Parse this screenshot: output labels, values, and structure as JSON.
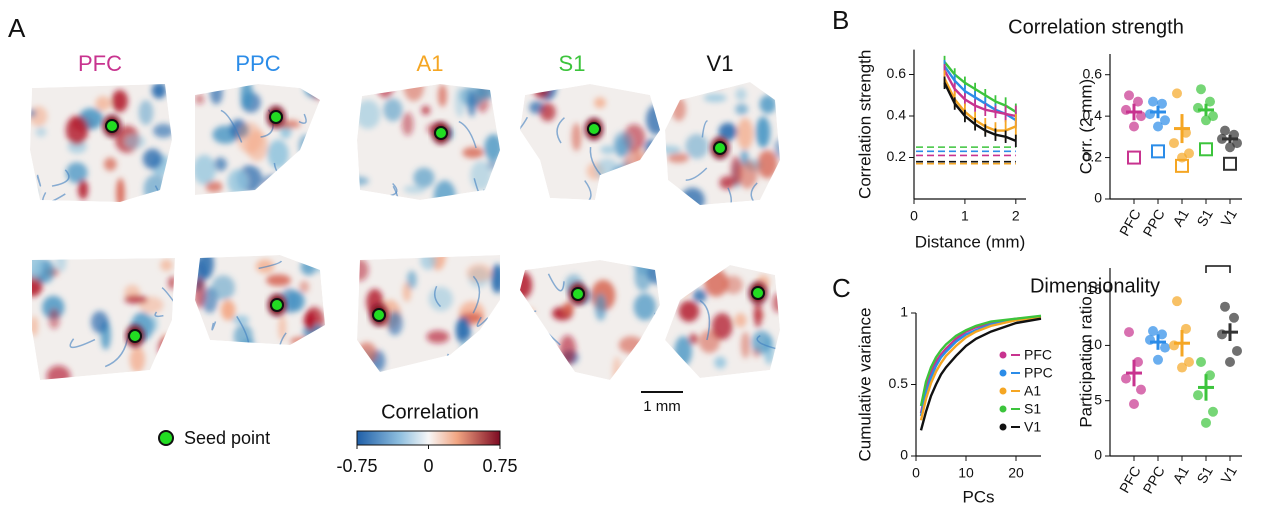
{
  "panel_labels": [
    "A",
    "B",
    "C"
  ],
  "panel_a": {
    "regions": [
      {
        "name": "PFC",
        "color": "#c8338f"
      },
      {
        "name": "PPC",
        "color": "#2b8ce8"
      },
      {
        "name": "A1",
        "color": "#f5a623"
      },
      {
        "name": "S1",
        "color": "#3cc43c"
      },
      {
        "name": "V1",
        "color": "#111111"
      }
    ],
    "seed_label": "Seed point",
    "colorbar": {
      "title": "Correlation",
      "lim": [
        -0.75,
        0.75
      ],
      "ticks": [
        -0.75,
        0,
        0.75
      ]
    },
    "scale_bar": "1 mm"
  },
  "chart_data": [
    {
      "type": "line",
      "title": "Correlation strength",
      "xlabel": "Distance (mm)",
      "ylabel": "Correlation strength",
      "x": [
        0.6,
        0.8,
        1.0,
        1.2,
        1.4,
        1.6,
        1.8,
        2.0
      ],
      "series": [
        {
          "color": "#3cc43c",
          "values": [
            0.66,
            0.6,
            0.56,
            0.53,
            0.5,
            0.47,
            0.45,
            0.42
          ],
          "errors": [
            0.03,
            0.03,
            0.03,
            0.03,
            0.03,
            0.03,
            0.04,
            0.04
          ],
          "baseline": 0.25
        },
        {
          "color": "#2b8ce8",
          "values": [
            0.64,
            0.57,
            0.52,
            0.49,
            0.46,
            0.43,
            0.41,
            0.38
          ],
          "errors": [
            0.03,
            0.03,
            0.03,
            0.03,
            0.03,
            0.03,
            0.03,
            0.04
          ],
          "baseline": 0.23
        },
        {
          "color": "#c8338f",
          "values": [
            0.62,
            0.53,
            0.48,
            0.45,
            0.43,
            0.42,
            0.41,
            0.4
          ],
          "errors": [
            0.03,
            0.03,
            0.03,
            0.03,
            0.03,
            0.03,
            0.04,
            0.05
          ],
          "baseline": 0.21
        },
        {
          "color": "#f5a623",
          "values": [
            0.58,
            0.48,
            0.42,
            0.38,
            0.35,
            0.33,
            0.33,
            0.35
          ],
          "errors": [
            0.04,
            0.04,
            0.04,
            0.04,
            0.04,
            0.04,
            0.05,
            0.06
          ],
          "baseline": 0.17
        },
        {
          "color": "#111111",
          "values": [
            0.56,
            0.46,
            0.4,
            0.36,
            0.33,
            0.31,
            0.3,
            0.28
          ],
          "errors": [
            0.03,
            0.03,
            0.03,
            0.03,
            0.03,
            0.03,
            0.03,
            0.03
          ],
          "baseline": 0.18
        }
      ],
      "xlim": [
        0,
        2.2
      ],
      "ylim": [
        0,
        0.72
      ],
      "xticks": [
        0,
        1,
        2
      ],
      "yticks": [
        0.2,
        0.4,
        0.6
      ]
    },
    {
      "type": "strip",
      "ylabel": "Corr. (2 mm)",
      "categories": [
        "PFC",
        "PPC",
        "A1",
        "S1",
        "V1"
      ],
      "groups": [
        {
          "color": "#c8338f",
          "points": [
            0.5,
            0.47,
            0.43,
            0.4,
            0.35
          ],
          "mean": 0.42,
          "error": 0.04,
          "shuffle": 0.2
        },
        {
          "color": "#2b8ce8",
          "points": [
            0.47,
            0.46,
            0.41,
            0.38,
            0.35
          ],
          "mean": 0.42,
          "error": 0.03,
          "shuffle": 0.23
        },
        {
          "color": "#f5a623",
          "points": [
            0.51,
            0.32,
            0.27,
            0.22,
            0.2
          ],
          "mean": 0.34,
          "error": 0.07,
          "shuffle": 0.16
        },
        {
          "color": "#3cc43c",
          "points": [
            0.53,
            0.47,
            0.44,
            0.4,
            0.38
          ],
          "mean": 0.43,
          "error": 0.03,
          "shuffle": 0.24
        },
        {
          "color": "#333333",
          "points": [
            0.33,
            0.31,
            0.29,
            0.27,
            0.25
          ],
          "mean": 0.29,
          "error": 0.02,
          "shuffle": 0.17
        }
      ],
      "ylim": [
        0,
        0.7
      ],
      "yticks": [
        0,
        0.2,
        0.4,
        0.6
      ]
    },
    {
      "type": "line",
      "title": "Dimensionality",
      "xlabel": "PCs",
      "ylabel": "Cumulative variance",
      "x": [
        1,
        2,
        3,
        4,
        5,
        6,
        8,
        10,
        12,
        15,
        20,
        25
      ],
      "series": [
        {
          "name": "PFC",
          "color": "#c8338f",
          "values": [
            0.3,
            0.47,
            0.58,
            0.66,
            0.71,
            0.75,
            0.82,
            0.87,
            0.9,
            0.93,
            0.96,
            0.97
          ]
        },
        {
          "name": "PPC",
          "color": "#2b8ce8",
          "values": [
            0.28,
            0.44,
            0.55,
            0.63,
            0.69,
            0.73,
            0.8,
            0.85,
            0.88,
            0.92,
            0.95,
            0.97
          ]
        },
        {
          "name": "A1",
          "color": "#f5a623",
          "values": [
            0.25,
            0.4,
            0.51,
            0.59,
            0.65,
            0.7,
            0.77,
            0.83,
            0.87,
            0.91,
            0.95,
            0.97
          ]
        },
        {
          "name": "S1",
          "color": "#3cc43c",
          "values": [
            0.35,
            0.52,
            0.62,
            0.69,
            0.74,
            0.78,
            0.84,
            0.88,
            0.91,
            0.94,
            0.96,
            0.98
          ]
        },
        {
          "name": "V1",
          "color": "#111111",
          "values": [
            0.18,
            0.31,
            0.42,
            0.5,
            0.57,
            0.62,
            0.7,
            0.77,
            0.82,
            0.87,
            0.93,
            0.96
          ]
        }
      ],
      "legend": "right",
      "xlim": [
        0,
        25
      ],
      "ylim": [
        0,
        1
      ],
      "xticks": [
        0,
        10,
        20
      ],
      "yticks": [
        0,
        0.5,
        1
      ]
    },
    {
      "type": "strip",
      "ylabel": "Participation ratio",
      "categories": [
        "PFC",
        "PPC",
        "A1",
        "S1",
        "V1"
      ],
      "groups": [
        {
          "color": "#c8338f",
          "points": [
            11.2,
            8.5,
            7.0,
            6.0,
            4.7
          ],
          "mean": 7.5,
          "error": 1.2
        },
        {
          "color": "#2b8ce8",
          "points": [
            11.3,
            11.0,
            10.5,
            9.8,
            8.7
          ],
          "mean": 10.3,
          "error": 0.7
        },
        {
          "color": "#f5a623",
          "points": [
            14.0,
            11.5,
            10.0,
            8.5,
            8.0
          ],
          "mean": 10.2,
          "error": 1.2
        },
        {
          "color": "#3cc43c",
          "points": [
            8.5,
            7.3,
            5.5,
            4.0,
            3.0
          ],
          "mean": 6.2,
          "error": 1.2
        },
        {
          "color": "#333333",
          "points": [
            13.5,
            12.5,
            11.0,
            9.5,
            8.5
          ],
          "mean": 11.2,
          "error": 0.8
        }
      ],
      "ylim": [
        0,
        17
      ],
      "yticks": [
        0,
        5,
        10,
        15
      ]
    }
  ]
}
